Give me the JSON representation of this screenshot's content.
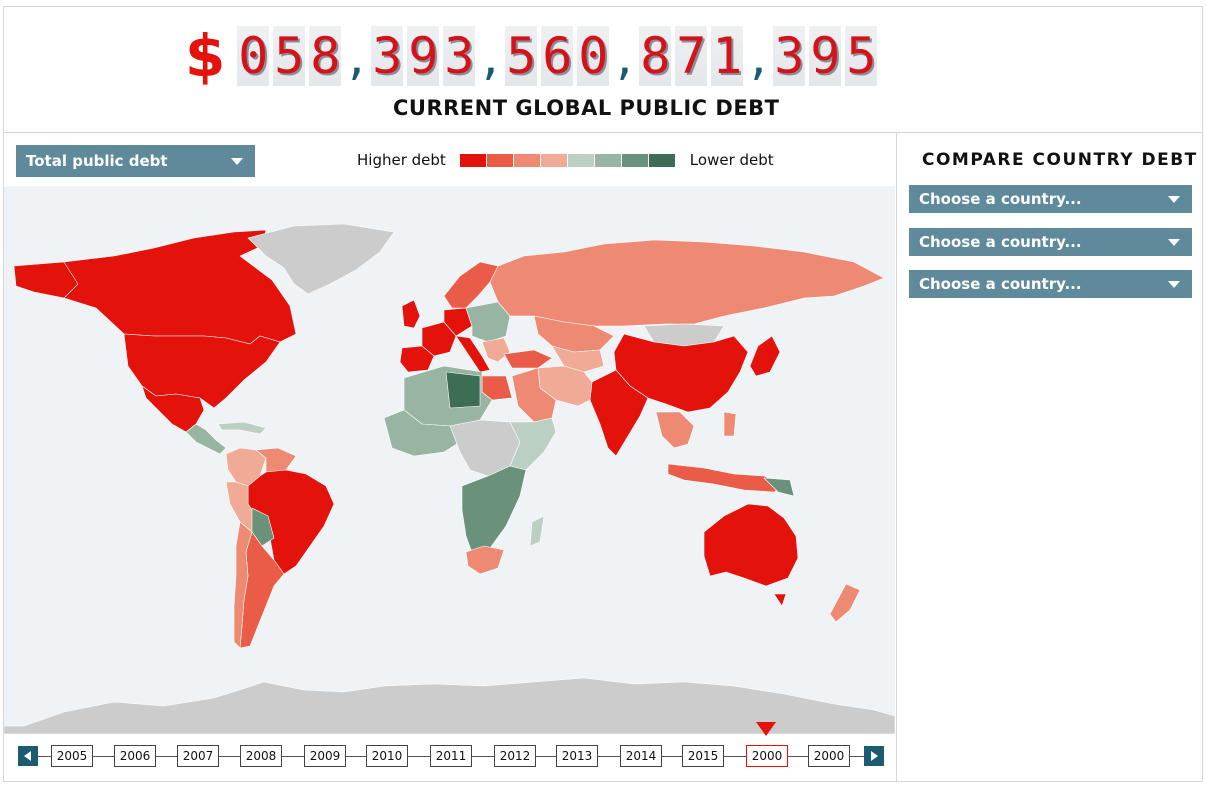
{
  "debt_clock": {
    "currency": "$",
    "groups": [
      "058",
      "393",
      "560",
      "871",
      "395"
    ],
    "separator": ",",
    "label": "CURRENT GLOBAL PUBLIC DEBT"
  },
  "metric_select": {
    "value": "Total public debt"
  },
  "legend": {
    "high_label": "Higher debt",
    "low_label": "Lower debt",
    "colors": [
      "#e3120b",
      "#ea5b48",
      "#ee8a73",
      "#f1aa96",
      "#bccfc3",
      "#97b5a0",
      "#6a927a",
      "#3e6d55"
    ]
  },
  "compare": {
    "title": "COMPARE COUNTRY DEBT",
    "selects": [
      "Choose a country...",
      "Choose a country...",
      "Choose a country..."
    ]
  },
  "timeline": {
    "years": [
      "2005",
      "2006",
      "2007",
      "2008",
      "2009",
      "2010",
      "2011",
      "2012",
      "2013",
      "2014",
      "2015",
      "2000",
      "2000"
    ],
    "selected_index": 11,
    "prev_icon": "chevron-left-icon",
    "next_icon": "chevron-right-icon"
  },
  "map_colors": {
    "ocean": "#f0f3f5",
    "no_data": "#cccccc",
    "highest": "#e3120b",
    "high": "#ea5b48",
    "mid_high": "#ee8a73",
    "mid": "#f1aa96",
    "low": "#bccfc3",
    "lower": "#97b5a0",
    "lowest": "#6a927a",
    "darkest": "#3e6d55"
  }
}
